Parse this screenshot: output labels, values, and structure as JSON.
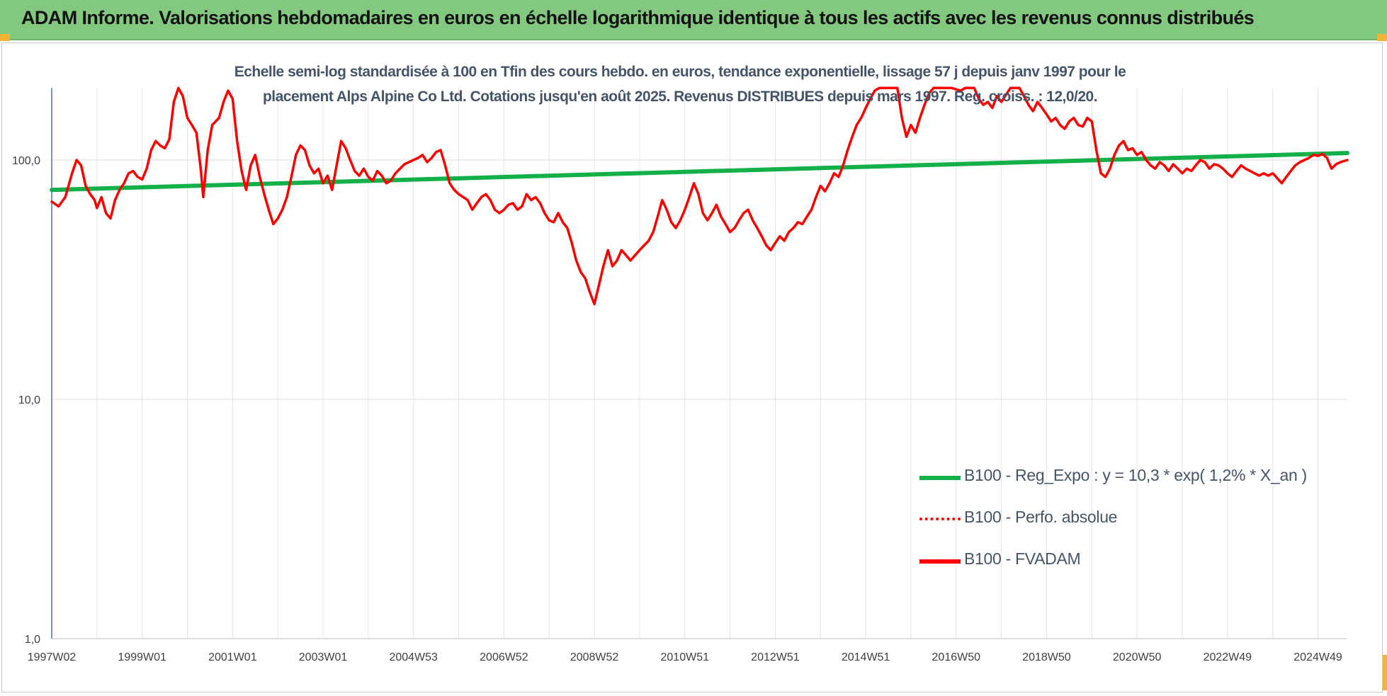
{
  "header": {
    "title": "ADAM Informe. Valorisations hebdomadaires en euros en échelle logarithmique identique à tous les actifs avec les revenus connus distribués"
  },
  "chart_data": {
    "type": "line",
    "title": "Echelle semi-log standardisée à 100 en Tfin des cours hebdo. en euros, tendance exponentielle, lissage 57 j depuis janv 1997 pour le placement Alps Alpine Co Ltd. Cotations jusqu'en août 2025. Revenus DISTRIBUES depuis mars 1997. Reg. croiss. : 12,0/20.",
    "title_lines": [
      "Echelle semi-log standardisée à 100 en Tfin des cours hebdo. en euros, tendance exponentielle, lissage 57 j depuis janv 1997 pour le",
      "placement Alps Alpine Co Ltd. Cotations jusqu'en août 2025. Revenus DISTRIBUES depuis mars 1997. Reg. croiss. : 12,0/20."
    ],
    "y_scale": "log",
    "ylim": [
      1,
      200
    ],
    "y_ticks": [
      {
        "value": 1,
        "label": "1,0"
      },
      {
        "value": 10,
        "label": "10,0"
      },
      {
        "value": 100,
        "label": "100,0"
      }
    ],
    "x_range": [
      1997.0,
      2025.65
    ],
    "x_ticks": [
      {
        "x": 1997.0,
        "label": "1997W02"
      },
      {
        "x": 1999.0,
        "label": "1999W01"
      },
      {
        "x": 2001.0,
        "label": "2001W01"
      },
      {
        "x": 2003.0,
        "label": "2003W01"
      },
      {
        "x": 2005.0,
        "label": "2004W53"
      },
      {
        "x": 2007.0,
        "label": "2006W52"
      },
      {
        "x": 2009.0,
        "label": "2008W52"
      },
      {
        "x": 2011.0,
        "label": "2010W51"
      },
      {
        "x": 2013.0,
        "label": "2012W51"
      },
      {
        "x": 2015.0,
        "label": "2014W51"
      },
      {
        "x": 2017.0,
        "label": "2016W50"
      },
      {
        "x": 2019.0,
        "label": "2018W50"
      },
      {
        "x": 2021.0,
        "label": "2020W50"
      },
      {
        "x": 2023.0,
        "label": "2022W49"
      },
      {
        "x": 2025.0,
        "label": "2024W49"
      }
    ],
    "x_gridlines": [
      1998,
      1999,
      2000,
      2001,
      2002,
      2003,
      2004,
      2005,
      2006,
      2007,
      2008,
      2009,
      2010,
      2011,
      2012,
      2013,
      2014,
      2015,
      2016,
      2017,
      2018,
      2019,
      2020,
      2021,
      2022,
      2023,
      2024,
      2025
    ],
    "grid": true,
    "legend_position": "bottom-right",
    "series": [
      {
        "name": "B100 - Reg_Expo : y = 10,3 * exp( 1,2% *  X_an )",
        "color": "#13b04a",
        "style": "solid",
        "points": [
          [
            1997.0,
            75
          ],
          [
            2025.65,
            107
          ]
        ]
      },
      {
        "name": "B100 - Perfo. absolue",
        "color": "#ff0000",
        "style": "dotted",
        "points": []
      },
      {
        "name": "B100 - FVADAM",
        "color": "#ff0000",
        "style": "solid",
        "points": [
          [
            1997.0,
            67
          ],
          [
            1997.15,
            64
          ],
          [
            1997.3,
            70
          ],
          [
            1997.45,
            88
          ],
          [
            1997.55,
            100
          ],
          [
            1997.65,
            95
          ],
          [
            1997.75,
            78
          ],
          [
            1997.85,
            72
          ],
          [
            1997.95,
            68
          ],
          [
            1998.0,
            63
          ],
          [
            1998.1,
            70
          ],
          [
            1998.2,
            60
          ],
          [
            1998.3,
            57
          ],
          [
            1998.4,
            68
          ],
          [
            1998.5,
            75
          ],
          [
            1998.6,
            80
          ],
          [
            1998.7,
            88
          ],
          [
            1998.8,
            90
          ],
          [
            1998.9,
            85
          ],
          [
            1999.0,
            83
          ],
          [
            1999.1,
            92
          ],
          [
            1999.2,
            110
          ],
          [
            1999.3,
            120
          ],
          [
            1999.4,
            115
          ],
          [
            1999.5,
            112
          ],
          [
            1999.6,
            122
          ],
          [
            1999.7,
            175
          ],
          [
            1999.8,
            200
          ],
          [
            1999.9,
            185
          ],
          [
            2000.0,
            150
          ],
          [
            2000.1,
            140
          ],
          [
            2000.2,
            130
          ],
          [
            2000.3,
            90
          ],
          [
            2000.35,
            70
          ],
          [
            2000.45,
            110
          ],
          [
            2000.55,
            140
          ],
          [
            2000.7,
            150
          ],
          [
            2000.8,
            175
          ],
          [
            2000.9,
            195
          ],
          [
            2001.0,
            180
          ],
          [
            2001.1,
            120
          ],
          [
            2001.2,
            90
          ],
          [
            2001.3,
            75
          ],
          [
            2001.4,
            95
          ],
          [
            2001.5,
            105
          ],
          [
            2001.6,
            85
          ],
          [
            2001.7,
            72
          ],
          [
            2001.8,
            62
          ],
          [
            2001.9,
            54
          ],
          [
            2002.0,
            57
          ],
          [
            2002.1,
            62
          ],
          [
            2002.2,
            70
          ],
          [
            2002.3,
            85
          ],
          [
            2002.4,
            105
          ],
          [
            2002.5,
            115
          ],
          [
            2002.6,
            110
          ],
          [
            2002.7,
            95
          ],
          [
            2002.8,
            88
          ],
          [
            2002.9,
            92
          ],
          [
            2003.0,
            80
          ],
          [
            2003.1,
            86
          ],
          [
            2003.2,
            75
          ],
          [
            2003.3,
            95
          ],
          [
            2003.4,
            120
          ],
          [
            2003.5,
            112
          ],
          [
            2003.6,
            100
          ],
          [
            2003.7,
            90
          ],
          [
            2003.8,
            86
          ],
          [
            2003.9,
            92
          ],
          [
            2004.0,
            85
          ],
          [
            2004.1,
            82
          ],
          [
            2004.2,
            90
          ],
          [
            2004.3,
            86
          ],
          [
            2004.4,
            80
          ],
          [
            2004.5,
            82
          ],
          [
            2004.6,
            88
          ],
          [
            2004.7,
            92
          ],
          [
            2004.8,
            96
          ],
          [
            2004.9,
            98
          ],
          [
            2005.0,
            100
          ],
          [
            2005.1,
            102
          ],
          [
            2005.2,
            105
          ],
          [
            2005.3,
            98
          ],
          [
            2005.4,
            102
          ],
          [
            2005.5,
            108
          ],
          [
            2005.6,
            110
          ],
          [
            2005.7,
            95
          ],
          [
            2005.8,
            80
          ],
          [
            2005.9,
            75
          ],
          [
            2006.0,
            72
          ],
          [
            2006.1,
            70
          ],
          [
            2006.2,
            68
          ],
          [
            2006.3,
            62
          ],
          [
            2006.4,
            66
          ],
          [
            2006.5,
            70
          ],
          [
            2006.6,
            72
          ],
          [
            2006.7,
            68
          ],
          [
            2006.8,
            62
          ],
          [
            2006.9,
            60
          ],
          [
            2007.0,
            62
          ],
          [
            2007.1,
            65
          ],
          [
            2007.2,
            66
          ],
          [
            2007.3,
            62
          ],
          [
            2007.4,
            64
          ],
          [
            2007.5,
            72
          ],
          [
            2007.6,
            68
          ],
          [
            2007.7,
            70
          ],
          [
            2007.8,
            66
          ],
          [
            2007.9,
            60
          ],
          [
            2008.0,
            56
          ],
          [
            2008.1,
            55
          ],
          [
            2008.2,
            60
          ],
          [
            2008.3,
            55
          ],
          [
            2008.4,
            52
          ],
          [
            2008.5,
            45
          ],
          [
            2008.6,
            38
          ],
          [
            2008.7,
            34
          ],
          [
            2008.8,
            32
          ],
          [
            2008.9,
            28
          ],
          [
            2009.0,
            25
          ],
          [
            2009.1,
            30
          ],
          [
            2009.2,
            36
          ],
          [
            2009.3,
            42
          ],
          [
            2009.4,
            36
          ],
          [
            2009.5,
            38
          ],
          [
            2009.6,
            42
          ],
          [
            2009.7,
            40
          ],
          [
            2009.8,
            38
          ],
          [
            2009.9,
            40
          ],
          [
            2010.0,
            42
          ],
          [
            2010.1,
            44
          ],
          [
            2010.2,
            46
          ],
          [
            2010.3,
            50
          ],
          [
            2010.4,
            58
          ],
          [
            2010.5,
            68
          ],
          [
            2010.6,
            62
          ],
          [
            2010.7,
            55
          ],
          [
            2010.8,
            52
          ],
          [
            2010.9,
            56
          ],
          [
            2011.0,
            62
          ],
          [
            2011.1,
            70
          ],
          [
            2011.2,
            80
          ],
          [
            2011.3,
            72
          ],
          [
            2011.4,
            60
          ],
          [
            2011.5,
            56
          ],
          [
            2011.6,
            60
          ],
          [
            2011.7,
            65
          ],
          [
            2011.8,
            58
          ],
          [
            2011.9,
            54
          ],
          [
            2012.0,
            50
          ],
          [
            2012.1,
            52
          ],
          [
            2012.2,
            56
          ],
          [
            2012.3,
            60
          ],
          [
            2012.4,
            62
          ],
          [
            2012.5,
            56
          ],
          [
            2012.6,
            52
          ],
          [
            2012.7,
            48
          ],
          [
            2012.8,
            44
          ],
          [
            2012.9,
            42
          ],
          [
            2013.0,
            45
          ],
          [
            2013.1,
            48
          ],
          [
            2013.2,
            46
          ],
          [
            2013.3,
            50
          ],
          [
            2013.4,
            52
          ],
          [
            2013.5,
            55
          ],
          [
            2013.6,
            54
          ],
          [
            2013.7,
            58
          ],
          [
            2013.8,
            62
          ],
          [
            2013.9,
            70
          ],
          [
            2014.0,
            78
          ],
          [
            2014.1,
            74
          ],
          [
            2014.2,
            80
          ],
          [
            2014.3,
            88
          ],
          [
            2014.4,
            85
          ],
          [
            2014.5,
            95
          ],
          [
            2014.6,
            110
          ],
          [
            2014.7,
            125
          ],
          [
            2014.8,
            140
          ],
          [
            2014.9,
            150
          ],
          [
            2015.0,
            165
          ],
          [
            2015.1,
            180
          ],
          [
            2015.2,
            195
          ],
          [
            2015.3,
            200
          ],
          [
            2015.5,
            200
          ],
          [
            2015.7,
            200
          ],
          [
            2015.8,
            150
          ],
          [
            2015.9,
            125
          ],
          [
            2016.0,
            140
          ],
          [
            2016.1,
            130
          ],
          [
            2016.2,
            150
          ],
          [
            2016.3,
            170
          ],
          [
            2016.4,
            190
          ],
          [
            2016.5,
            200
          ],
          [
            2016.7,
            200
          ],
          [
            2016.9,
            200
          ],
          [
            2017.1,
            195
          ],
          [
            2017.2,
            200
          ],
          [
            2017.4,
            200
          ],
          [
            2017.5,
            180
          ],
          [
            2017.6,
            170
          ],
          [
            2017.7,
            175
          ],
          [
            2017.8,
            165
          ],
          [
            2017.9,
            185
          ],
          [
            2018.0,
            175
          ],
          [
            2018.2,
            200
          ],
          [
            2018.4,
            200
          ],
          [
            2018.5,
            185
          ],
          [
            2018.6,
            170
          ],
          [
            2018.7,
            160
          ],
          [
            2018.8,
            175
          ],
          [
            2018.9,
            165
          ],
          [
            2019.0,
            155
          ],
          [
            2019.1,
            145
          ],
          [
            2019.2,
            150
          ],
          [
            2019.3,
            140
          ],
          [
            2019.4,
            135
          ],
          [
            2019.5,
            145
          ],
          [
            2019.6,
            150
          ],
          [
            2019.7,
            140
          ],
          [
            2019.8,
            138
          ],
          [
            2019.9,
            150
          ],
          [
            2020.0,
            145
          ],
          [
            2020.1,
            110
          ],
          [
            2020.2,
            88
          ],
          [
            2020.3,
            85
          ],
          [
            2020.4,
            92
          ],
          [
            2020.5,
            105
          ],
          [
            2020.6,
            115
          ],
          [
            2020.7,
            120
          ],
          [
            2020.8,
            110
          ],
          [
            2020.9,
            112
          ],
          [
            2021.0,
            105
          ],
          [
            2021.1,
            108
          ],
          [
            2021.2,
            100
          ],
          [
            2021.3,
            95
          ],
          [
            2021.4,
            92
          ],
          [
            2021.5,
            98
          ],
          [
            2021.6,
            95
          ],
          [
            2021.7,
            90
          ],
          [
            2021.8,
            96
          ],
          [
            2021.9,
            92
          ],
          [
            2022.0,
            88
          ],
          [
            2022.1,
            92
          ],
          [
            2022.2,
            90
          ],
          [
            2022.3,
            95
          ],
          [
            2022.4,
            100
          ],
          [
            2022.5,
            98
          ],
          [
            2022.6,
            92
          ],
          [
            2022.7,
            96
          ],
          [
            2022.8,
            95
          ],
          [
            2022.9,
            92
          ],
          [
            2023.0,
            88
          ],
          [
            2023.1,
            85
          ],
          [
            2023.2,
            90
          ],
          [
            2023.3,
            95
          ],
          [
            2023.4,
            92
          ],
          [
            2023.5,
            90
          ],
          [
            2023.6,
            88
          ],
          [
            2023.7,
            86
          ],
          [
            2023.8,
            88
          ],
          [
            2023.9,
            86
          ],
          [
            2024.0,
            88
          ],
          [
            2024.1,
            84
          ],
          [
            2024.2,
            80
          ],
          [
            2024.3,
            85
          ],
          [
            2024.4,
            90
          ],
          [
            2024.5,
            95
          ],
          [
            2024.6,
            98
          ],
          [
            2024.7,
            100
          ],
          [
            2024.8,
            102
          ],
          [
            2024.9,
            105
          ],
          [
            2025.0,
            104
          ],
          [
            2025.1,
            106
          ],
          [
            2025.2,
            102
          ],
          [
            2025.3,
            92
          ],
          [
            2025.4,
            96
          ],
          [
            2025.5,
            98
          ],
          [
            2025.65,
            100
          ]
        ]
      }
    ]
  }
}
